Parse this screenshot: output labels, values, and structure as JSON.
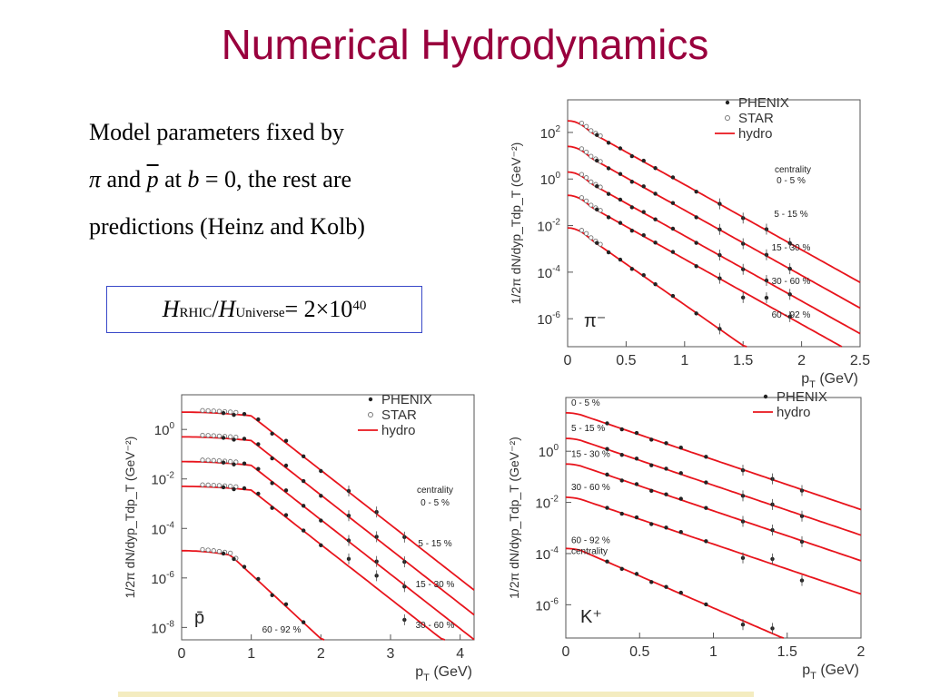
{
  "slide": {
    "title": "Numerical Hydrodynamics",
    "text": {
      "line1": "Model parameters fixed by",
      "line2_pi": "π",
      "line2_and": " and ",
      "line2_pbar": "p",
      "line2_at": " at ",
      "line2_b": "b",
      "line2_eq": " = 0, the rest are",
      "line3": "predictions (Heinz and Kolb)"
    },
    "formula": {
      "h1": "H",
      "sub1": "RHIC",
      "slash": " / ",
      "h2": "H",
      "sub2": "Universe",
      "eq": " = 2×10",
      "exp": "40"
    }
  },
  "chart_data": [
    {
      "type": "scatter",
      "panel_label": "π⁻",
      "xlabel": "p_T (GeV)",
      "ylabel": "1/2π dN/dyp_Tdp_T (GeV⁻²)",
      "xlim": [
        0,
        2.5
      ],
      "ylim_log10": [
        -7.2,
        3.4
      ],
      "xticks": [
        "0",
        "0.5",
        "1",
        "1.5",
        "2",
        "2.5"
      ],
      "yticks": [
        {
          "exp": 2,
          "label": "10^2"
        },
        {
          "exp": 0,
          "label": "10^0"
        },
        {
          "exp": -2,
          "label": "10^-2"
        },
        {
          "exp": -4,
          "label": "10^-4"
        },
        {
          "exp": -6,
          "label": "10^-6"
        }
      ],
      "legend": [
        {
          "name": "PHENIX",
          "marker": "dot"
        },
        {
          "name": "STAR",
          "marker": "circle"
        },
        {
          "name": "hydro",
          "marker": "line"
        }
      ],
      "legend_title": "centrality",
      "hydro_color": "#e8141c",
      "series": [
        {
          "name": "0 - 5 %",
          "curve": {
            "A": 2.5,
            "x0": 0.2,
            "s0": 5.0,
            "s1": 2.8
          }
        },
        {
          "name": "5 - 15 %",
          "curve": {
            "A": 1.4,
            "x0": 0.2,
            "s0": 5.0,
            "s1": 2.8
          }
        },
        {
          "name": "15 - 30 %",
          "curve": {
            "A": 0.3,
            "x0": 0.2,
            "s0": 5.0,
            "s1": 2.8
          }
        },
        {
          "name": "30 - 60 %",
          "curve": {
            "A": -0.7,
            "x0": 0.2,
            "s0": 5.0,
            "s1": 2.8
          }
        },
        {
          "name": "60 - 92 %",
          "curve": {
            "A": -2.1,
            "x0": 0.2,
            "s0": 5.0,
            "s1": 3.5
          }
        }
      ],
      "phenix_x": [
        0.25,
        0.35,
        0.45,
        0.55,
        0.65,
        0.75,
        0.9,
        1.1,
        1.3,
        1.5,
        1.7,
        1.9
      ],
      "star_x": [
        0.12,
        0.16,
        0.2,
        0.24,
        0.28
      ]
    },
    {
      "type": "scatter",
      "panel_label": "p̄",
      "xlabel": "p_T (GeV)",
      "ylabel": "1/2π dN/dyp_Tdp_T (GeV⁻²)",
      "xlim": [
        0,
        4.2
      ],
      "ylim_log10": [
        -8.5,
        1.4
      ],
      "xticks": [
        "0",
        "1",
        "2",
        "3",
        "4"
      ],
      "yticks": [
        {
          "exp": 0,
          "label": "10^0"
        },
        {
          "exp": -2,
          "label": "10^-2"
        },
        {
          "exp": -4,
          "label": "10^-4"
        },
        {
          "exp": -6,
          "label": "10^-6"
        },
        {
          "exp": -8,
          "label": "10^-8"
        }
      ],
      "legend": [
        {
          "name": "PHENIX",
          "marker": "dot"
        },
        {
          "name": "STAR",
          "marker": "circle"
        },
        {
          "name": "hydro",
          "marker": "line"
        }
      ],
      "legend_title": "centrality",
      "hydro_color": "#e8141c",
      "series": [
        {
          "name": "0 - 5 %",
          "curve": {
            "A": 0.7,
            "x0": 1.0,
            "s0": 0.3,
            "s1": 2.2
          }
        },
        {
          "name": "5 - 15 %",
          "curve": {
            "A": -0.3,
            "x0": 1.0,
            "s0": 0.3,
            "s1": 2.2
          }
        },
        {
          "name": "15 - 30 %",
          "curve": {
            "A": -1.3,
            "x0": 1.0,
            "s0": 0.3,
            "s1": 2.2
          }
        },
        {
          "name": "30 - 60 %",
          "curve": {
            "A": -2.3,
            "x0": 1.0,
            "s0": 0.3,
            "s1": 2.2
          }
        },
        {
          "name": "60 - 92 %",
          "curve": {
            "A": -4.9,
            "x0": 0.7,
            "s0": 0.5,
            "s1": 2.6
          }
        }
      ],
      "phenix_x": [
        0.6,
        0.75,
        0.9,
        1.1,
        1.3,
        1.5,
        1.75,
        2.0,
        2.4,
        2.8,
        3.2
      ],
      "star_x": [
        0.3,
        0.38,
        0.46,
        0.54,
        0.62,
        0.7,
        0.78
      ]
    },
    {
      "type": "scatter",
      "panel_label": "K⁺",
      "xlabel": "p_T (GeV)",
      "ylabel": "1/2π dN/dyp_Tdp_T (GeV⁻²)",
      "xlim": [
        0,
        2.0
      ],
      "ylim_log10": [
        -7.3,
        2.1
      ],
      "xticks": [
        "0",
        "0.5",
        "1",
        "1.5",
        "2"
      ],
      "yticks": [
        {
          "exp": 0,
          "label": "10^0"
        },
        {
          "exp": -2,
          "label": "10^-2"
        },
        {
          "exp": -4,
          "label": "10^-4"
        },
        {
          "exp": -6,
          "label": "10^-6"
        }
      ],
      "legend": [
        {
          "name": "PHENIX",
          "marker": "dot"
        },
        {
          "name": "hydro",
          "marker": "line"
        }
      ],
      "legend_title": "centrality",
      "hydro_color": "#e8141c",
      "series": [
        {
          "name": "0 - 5 %",
          "curve": {
            "A": 1.5,
            "x0": 0.1,
            "s0": 1.5,
            "s1": 1.95
          }
        },
        {
          "name": "5 - 15 %",
          "curve": {
            "A": 0.5,
            "x0": 0.1,
            "s0": 1.5,
            "s1": 1.95
          }
        },
        {
          "name": "15 - 30 %",
          "curve": {
            "A": -0.5,
            "x0": 0.1,
            "s0": 1.5,
            "s1": 1.95
          }
        },
        {
          "name": "30 - 60 %",
          "curve": {
            "A": -1.8,
            "x0": 0.1,
            "s0": 1.5,
            "s1": 1.95
          }
        },
        {
          "name": "60 - 92 %",
          "curve": {
            "A": -3.8,
            "x0": 0.1,
            "s0": 1.5,
            "s1": 2.5
          }
        }
      ],
      "phenix_x": [
        0.28,
        0.38,
        0.48,
        0.58,
        0.68,
        0.78,
        0.95,
        1.2,
        1.4,
        1.6
      ]
    }
  ]
}
